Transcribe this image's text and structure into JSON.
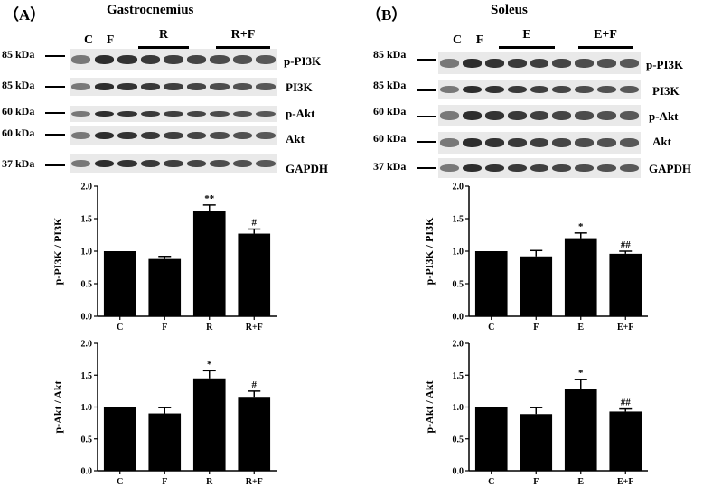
{
  "panel_a": {
    "letter": "（A）",
    "title": "Gastrocnemius",
    "lanes": [
      "C",
      "F"
    ],
    "groups": [
      "R",
      "R+F"
    ],
    "kda": [
      "85 kDa",
      "85 kDa",
      "60 kDa",
      "60 kDa",
      "37 kDa"
    ],
    "proteins": [
      "p-PI3K",
      "PI3K",
      "p-Akt",
      "Akt",
      "GAPDH"
    ]
  },
  "panel_b": {
    "letter": "（B）",
    "title": "Soleus",
    "lanes": [
      "C",
      "F"
    ],
    "groups": [
      "E",
      "E+F"
    ],
    "kda": [
      "85 kDa",
      "85 kDa",
      "60 kDa",
      "60 kDa",
      "37 kDa"
    ],
    "proteins": [
      "p-PI3K",
      "PI3K",
      "p-Akt",
      "Akt",
      "GAPDH"
    ]
  },
  "colors": {
    "bar": "#000000",
    "blot_background": "#e9e9e9",
    "band": "#1c1c1c"
  },
  "chart_data": [
    {
      "type": "bar",
      "panel": "A",
      "categories": [
        "C",
        "F",
        "R",
        "R+F"
      ],
      "values": [
        1.0,
        0.88,
        1.62,
        1.27
      ],
      "errors": [
        0,
        0.04,
        0.09,
        0.07
      ],
      "annotations": [
        "",
        "",
        "**",
        "#"
      ],
      "ylabel": "p-PI3K / PI3K",
      "ylim": [
        0,
        2.0
      ],
      "yticks": [
        "0.0",
        "0.5",
        "1.0",
        "1.5",
        "2.0"
      ]
    },
    {
      "type": "bar",
      "panel": "A",
      "categories": [
        "C",
        "F",
        "R",
        "R+F"
      ],
      "values": [
        1.0,
        0.9,
        1.45,
        1.16
      ],
      "errors": [
        0,
        0.09,
        0.12,
        0.09
      ],
      "annotations": [
        "",
        "",
        "*",
        "#"
      ],
      "ylabel": "p-Akt / Akt",
      "ylim": [
        0,
        2.0
      ],
      "yticks": [
        "0.0",
        "0.5",
        "1.0",
        "1.5",
        "2.0"
      ]
    },
    {
      "type": "bar",
      "panel": "B",
      "categories": [
        "C",
        "F",
        "E",
        "E+F"
      ],
      "values": [
        1.0,
        0.92,
        1.2,
        0.96
      ],
      "errors": [
        0,
        0.09,
        0.08,
        0.04
      ],
      "annotations": [
        "",
        "",
        "*",
        "##"
      ],
      "ylabel": "p-PI3K / PI3K",
      "ylim": [
        0,
        2.0
      ],
      "yticks": [
        "0.0",
        "0.5",
        "1.0",
        "1.5",
        "2.0"
      ]
    },
    {
      "type": "bar",
      "panel": "B",
      "categories": [
        "C",
        "F",
        "E",
        "E+F"
      ],
      "values": [
        1.0,
        0.89,
        1.28,
        0.93
      ],
      "errors": [
        0,
        0.1,
        0.15,
        0.04
      ],
      "annotations": [
        "",
        "",
        "*",
        "##"
      ],
      "ylabel": "p-Akt / Akt",
      "ylim": [
        0,
        2.0
      ],
      "yticks": [
        "0.0",
        "0.5",
        "1.0",
        "1.5",
        "2.0"
      ]
    }
  ]
}
